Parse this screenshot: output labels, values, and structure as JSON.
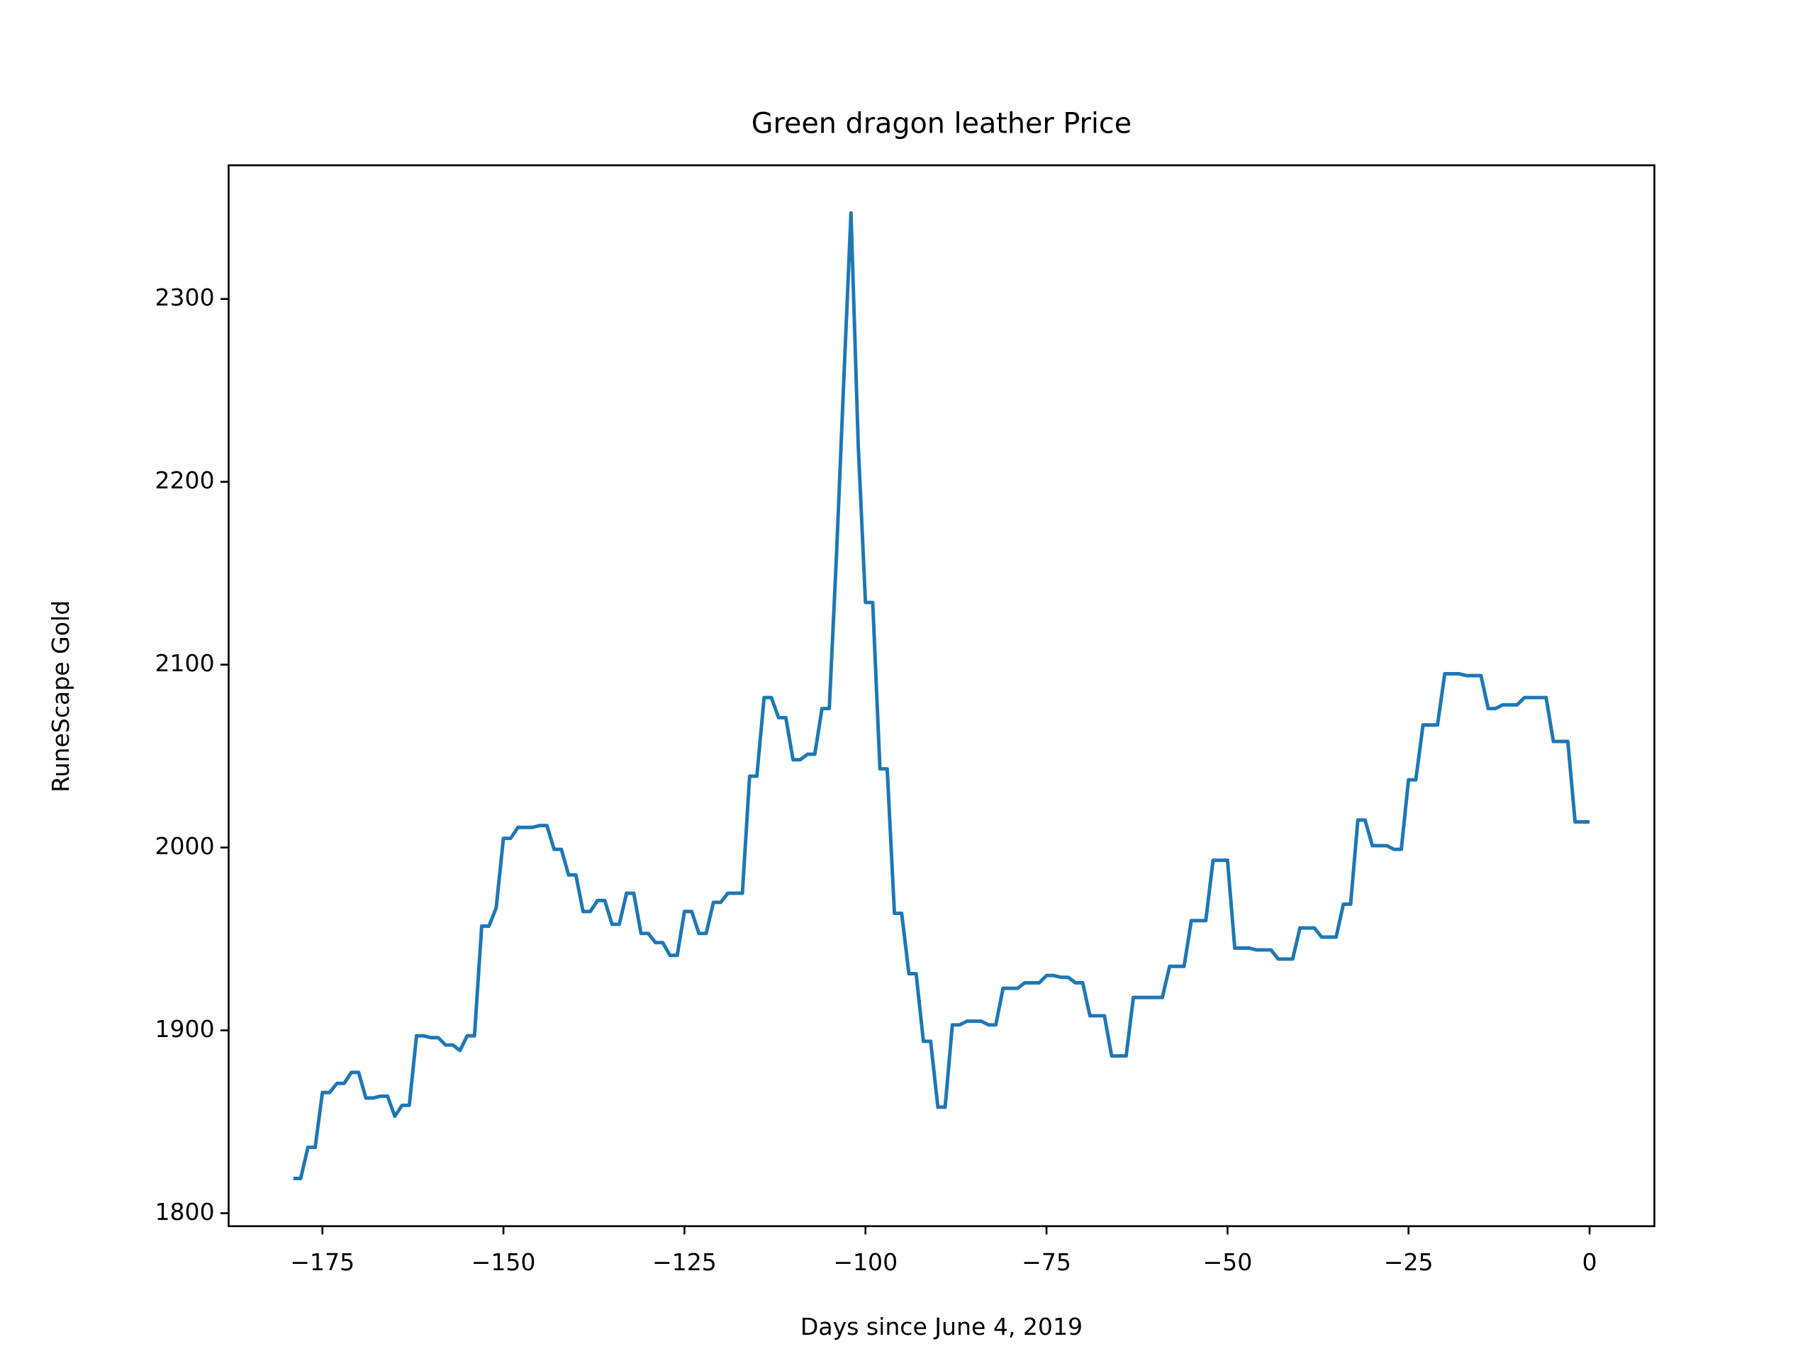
{
  "chart_data": {
    "type": "line",
    "title": "Green dragon leather Price",
    "xlabel": "Days since June 4, 2019",
    "ylabel": "RuneScape Gold",
    "color": "#1f77b4",
    "grid": false,
    "x": [
      -179,
      -178,
      -177,
      -176,
      -175,
      -174,
      -173,
      -172,
      -171,
      -170,
      -169,
      -168,
      -167,
      -166,
      -165,
      -164,
      -163,
      -162,
      -161,
      -160,
      -159,
      -158,
      -157,
      -156,
      -155,
      -154,
      -153,
      -152,
      -151,
      -150,
      -149,
      -148,
      -147,
      -146,
      -145,
      -144,
      -143,
      -142,
      -141,
      -140,
      -139,
      -138,
      -137,
      -136,
      -135,
      -134,
      -133,
      -132,
      -131,
      -130,
      -129,
      -128,
      -127,
      -126,
      -125,
      -124,
      -123,
      -122,
      -121,
      -120,
      -119,
      -118,
      -117,
      -116,
      -115,
      -114,
      -113,
      -112,
      -111,
      -110,
      -109,
      -108,
      -107,
      -106,
      -105,
      -104,
      -103,
      -102,
      -101,
      -100,
      -99,
      -98,
      -97,
      -96,
      -95,
      -94,
      -93,
      -92,
      -91,
      -90,
      -89,
      -88,
      -87,
      -86,
      -85,
      -84,
      -83,
      -82,
      -81,
      -80,
      -79,
      -78,
      -77,
      -76,
      -75,
      -74,
      -73,
      -72,
      -71,
      -70,
      -69,
      -68,
      -67,
      -66,
      -65,
      -64,
      -63,
      -62,
      -61,
      -60,
      -59,
      -58,
      -57,
      -56,
      -55,
      -54,
      -53,
      -52,
      -51,
      -50,
      -49,
      -48,
      -47,
      -46,
      -45,
      -44,
      -43,
      -42,
      -41,
      -40,
      -39,
      -38,
      -37,
      -36,
      -35,
      -34,
      -33,
      -32,
      -31,
      -30,
      -29,
      -28,
      -27,
      -26,
      -25,
      -24,
      -23,
      -22,
      -21,
      -20,
      -19,
      -18,
      -17,
      -16,
      -15,
      -14,
      -13,
      -12,
      -11,
      -10,
      -9,
      -8,
      -7,
      -6,
      -5,
      -4,
      -3,
      -2,
      -1,
      0
    ],
    "values": [
      1819,
      1819,
      1836,
      1836,
      1866,
      1866,
      1871,
      1871,
      1877,
      1877,
      1863,
      1863,
      1864,
      1864,
      1853,
      1859,
      1859,
      1897,
      1897,
      1896,
      1896,
      1892,
      1892,
      1889,
      1897,
      1897,
      1957,
      1957,
      1967,
      2005,
      2005,
      2011,
      2011,
      2011,
      2012,
      2012,
      1999,
      1999,
      1985,
      1985,
      1965,
      1965,
      1971,
      1971,
      1958,
      1958,
      1975,
      1975,
      1953,
      1953,
      1948,
      1948,
      1941,
      1941,
      1965,
      1965,
      1953,
      1953,
      1970,
      1970,
      1975,
      1975,
      1975,
      2039,
      2039,
      2082,
      2082,
      2071,
      2071,
      2048,
      2048,
      2051,
      2051,
      2076,
      2076,
      2160,
      2255,
      2347,
      2220,
      2134,
      2134,
      2043,
      2043,
      1964,
      1964,
      1931,
      1931,
      1894,
      1894,
      1858,
      1858,
      1903,
      1903,
      1905,
      1905,
      1905,
      1903,
      1903,
      1923,
      1923,
      1923,
      1926,
      1926,
      1926,
      1930,
      1930,
      1929,
      1929,
      1926,
      1926,
      1908,
      1908,
      1908,
      1886,
      1886,
      1886,
      1918,
      1918,
      1918,
      1918,
      1918,
      1935,
      1935,
      1935,
      1960,
      1960,
      1960,
      1993,
      1993,
      1993,
      1945,
      1945,
      1945,
      1944,
      1944,
      1944,
      1939,
      1939,
      1939,
      1956,
      1956,
      1956,
      1951,
      1951,
      1951,
      1969,
      1969,
      2015,
      2015,
      2001,
      2001,
      2001,
      1999,
      1999,
      2037,
      2037,
      2067,
      2067,
      2067,
      2095,
      2095,
      2095,
      2094,
      2094,
      2094,
      2076,
      2076,
      2078,
      2078,
      2078,
      2082,
      2082,
      2082,
      2082,
      2058,
      2058,
      2058,
      2014,
      2014,
      2014
    ],
    "xlim": [
      -187.95,
      8.95
    ],
    "ylim": [
      1792.9,
      2373.1
    ],
    "xticks": [
      {
        "value": -175,
        "label": "−175"
      },
      {
        "value": -150,
        "label": "−150"
      },
      {
        "value": -125,
        "label": "−125"
      },
      {
        "value": -100,
        "label": "−100"
      },
      {
        "value": -75,
        "label": "−75"
      },
      {
        "value": -50,
        "label": "−50"
      },
      {
        "value": -25,
        "label": "−25"
      },
      0
    ],
    "yticks": [
      1800,
      1900,
      2000,
      2100,
      2200,
      2300
    ]
  }
}
